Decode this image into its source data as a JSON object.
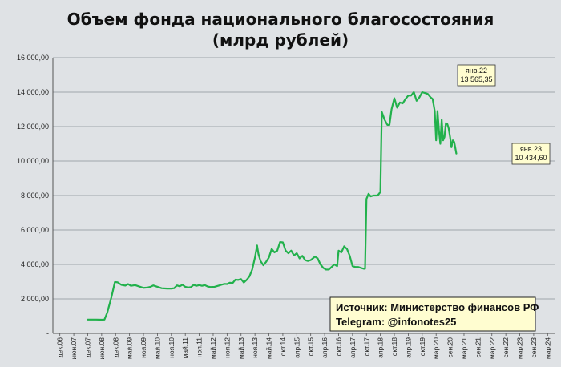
{
  "chart_data": {
    "type": "line",
    "title": [
      "Объем фонда национального благосостояния",
      "(млрд рублей)"
    ],
    "xlabel": "",
    "ylabel": "",
    "x_tick_labels": [
      "дек.06",
      "июн.07",
      "дек.07",
      "июн.08",
      "дек.08",
      "май.09",
      "ноя.09",
      "май.10",
      "ноя.10",
      "май.11",
      "ноя.11",
      "май.12",
      "ноя.12",
      "май.13",
      "ноя.13",
      "май.14",
      "окт.14",
      "апр.15",
      "окт.15",
      "апр.16",
      "окт.16",
      "апр.17",
      "окт.17",
      "апр.18",
      "окт.18",
      "апр.19",
      "окт.19",
      "мар.20",
      "сен.20",
      "мар.21",
      "сен.21",
      "мар.22",
      "сен.22",
      "мар.23",
      "сен.23",
      "мар.24"
    ],
    "y_tick_labels": [
      "-",
      "2 000,00",
      "4 000,00",
      "6 000,00",
      "8 000,00",
      "10 000,00",
      "12 000,00",
      "14 000,00",
      "16 000,00"
    ],
    "ylim": [
      0,
      16000
    ],
    "grid": true,
    "series": [
      {
        "color": "#22b14c",
        "points": [
          [
            2.0,
            800
          ],
          [
            2.6,
            800
          ],
          [
            3.0,
            790
          ],
          [
            3.2,
            800
          ],
          [
            3.4,
            1200
          ],
          [
            3.7,
            2100
          ],
          [
            3.95,
            2980
          ],
          [
            4.15,
            2960
          ],
          [
            4.4,
            2820
          ],
          [
            4.7,
            2770
          ],
          [
            4.9,
            2860
          ],
          [
            5.1,
            2760
          ],
          [
            5.4,
            2800
          ],
          [
            5.7,
            2720
          ],
          [
            6.0,
            2640
          ],
          [
            6.3,
            2660
          ],
          [
            6.5,
            2700
          ],
          [
            6.7,
            2780
          ],
          [
            7.0,
            2700
          ],
          [
            7.3,
            2620
          ],
          [
            7.7,
            2600
          ],
          [
            8.0,
            2600
          ],
          [
            8.2,
            2620
          ],
          [
            8.4,
            2780
          ],
          [
            8.6,
            2730
          ],
          [
            8.8,
            2820
          ],
          [
            9.0,
            2700
          ],
          [
            9.2,
            2660
          ],
          [
            9.4,
            2680
          ],
          [
            9.6,
            2810
          ],
          [
            9.8,
            2760
          ],
          [
            10.0,
            2800
          ],
          [
            10.2,
            2760
          ],
          [
            10.4,
            2800
          ],
          [
            10.6,
            2720
          ],
          [
            10.8,
            2690
          ],
          [
            11.1,
            2700
          ],
          [
            11.4,
            2770
          ],
          [
            11.6,
            2820
          ],
          [
            11.8,
            2870
          ],
          [
            12.0,
            2860
          ],
          [
            12.2,
            2940
          ],
          [
            12.4,
            2920
          ],
          [
            12.6,
            3120
          ],
          [
            12.8,
            3100
          ],
          [
            13.0,
            3150
          ],
          [
            13.2,
            2950
          ],
          [
            13.4,
            3100
          ],
          [
            13.6,
            3300
          ],
          [
            13.8,
            3700
          ],
          [
            14.0,
            4400
          ],
          [
            14.15,
            5100
          ],
          [
            14.25,
            4600
          ],
          [
            14.4,
            4200
          ],
          [
            14.6,
            3950
          ],
          [
            14.8,
            4150
          ],
          [
            15.0,
            4400
          ],
          [
            15.2,
            4900
          ],
          [
            15.4,
            4700
          ],
          [
            15.6,
            4800
          ],
          [
            15.8,
            5300
          ],
          [
            16.0,
            5280
          ],
          [
            16.2,
            4800
          ],
          [
            16.4,
            4650
          ],
          [
            16.6,
            4800
          ],
          [
            16.8,
            4520
          ],
          [
            17.0,
            4650
          ],
          [
            17.2,
            4350
          ],
          [
            17.4,
            4500
          ],
          [
            17.6,
            4250
          ],
          [
            17.8,
            4200
          ],
          [
            18.0,
            4250
          ],
          [
            18.3,
            4450
          ],
          [
            18.5,
            4350
          ],
          [
            18.7,
            4000
          ],
          [
            18.9,
            3800
          ],
          [
            19.1,
            3700
          ],
          [
            19.3,
            3700
          ],
          [
            19.5,
            3850
          ],
          [
            19.7,
            4000
          ],
          [
            19.9,
            3900
          ],
          [
            20.0,
            4800
          ],
          [
            20.2,
            4700
          ],
          [
            20.4,
            5050
          ],
          [
            20.6,
            4900
          ],
          [
            20.8,
            4500
          ],
          [
            21.0,
            3900
          ],
          [
            21.2,
            3850
          ],
          [
            21.4,
            3850
          ],
          [
            21.6,
            3800
          ],
          [
            21.8,
            3750
          ],
          [
            21.9,
            3750
          ],
          [
            22.0,
            7800
          ],
          [
            22.15,
            8100
          ],
          [
            22.3,
            7950
          ],
          [
            22.5,
            8000
          ],
          [
            22.8,
            8000
          ],
          [
            23.0,
            8200
          ],
          [
            23.1,
            12850
          ],
          [
            23.3,
            12400
          ],
          [
            23.5,
            12100
          ],
          [
            23.65,
            12100
          ],
          [
            23.8,
            13000
          ],
          [
            24.0,
            13650
          ],
          [
            24.2,
            13100
          ],
          [
            24.4,
            13400
          ],
          [
            24.6,
            13350
          ],
          [
            24.8,
            13600
          ],
          [
            25.0,
            13800
          ],
          [
            25.2,
            13800
          ],
          [
            25.4,
            14000
          ],
          [
            25.6,
            13500
          ],
          [
            25.8,
            13700
          ],
          [
            26.0,
            14000
          ],
          [
            26.2,
            13950
          ],
          [
            26.4,
            13900
          ],
          [
            26.6,
            13700
          ],
          [
            26.75,
            13600
          ],
          [
            26.9,
            12900
          ],
          [
            27.0,
            11200
          ],
          [
            27.1,
            12900
          ],
          [
            27.2,
            11800
          ],
          [
            27.3,
            11000
          ],
          [
            27.4,
            12400
          ],
          [
            27.5,
            11200
          ],
          [
            27.6,
            11400
          ],
          [
            27.7,
            12200
          ],
          [
            27.8,
            12150
          ],
          [
            27.9,
            11900
          ],
          [
            28.0,
            11400
          ],
          [
            28.1,
            10800
          ],
          [
            28.2,
            11200
          ],
          [
            28.3,
            11100
          ],
          [
            28.45,
            10434.6
          ]
        ]
      }
    ],
    "annotations": [
      {
        "label": "янв.22",
        "value": "13 565,35"
      },
      {
        "label": "янв.23",
        "value": "10 434,60"
      }
    ],
    "source_box": {
      "line1": "Источник: Министерство финансов РФ",
      "line2": "Telegram: @infonotes25"
    }
  }
}
